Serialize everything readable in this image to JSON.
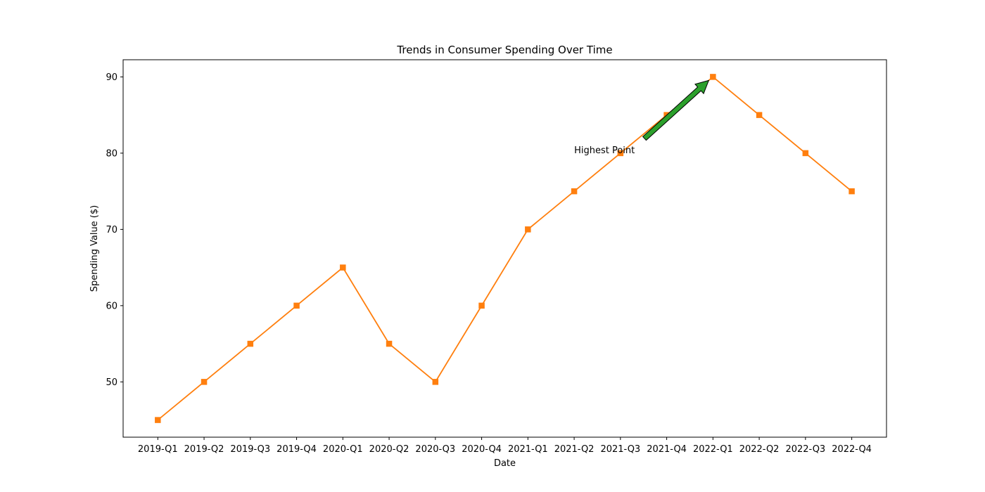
{
  "chart_data": {
    "type": "line",
    "title": "Trends in Consumer Spending Over Time",
    "xlabel": "Date",
    "ylabel": "Spending Value ($)",
    "categories": [
      "2019-Q1",
      "2019-Q2",
      "2019-Q3",
      "2019-Q4",
      "2020-Q1",
      "2020-Q2",
      "2020-Q3",
      "2020-Q4",
      "2021-Q1",
      "2021-Q2",
      "2021-Q3",
      "2021-Q4",
      "2022-Q1",
      "2022-Q2",
      "2022-Q3",
      "2022-Q4"
    ],
    "series": [
      {
        "values": [
          45,
          50,
          55,
          60,
          65,
          55,
          50,
          60,
          70,
          75,
          80,
          85,
          90,
          85,
          80,
          75
        ],
        "color": "#ff7f0e",
        "marker": "square"
      }
    ],
    "ylim": [
      42.75,
      92.25
    ],
    "yticks": [
      50,
      60,
      70,
      80,
      90
    ],
    "grid": false,
    "legend": "none",
    "annotation": {
      "text": "Highest Point",
      "target_category": "2022-Q1",
      "target_value": 90,
      "text_category": "2021-Q2",
      "text_value": 80,
      "arrow_color": "#2ca02c"
    }
  }
}
